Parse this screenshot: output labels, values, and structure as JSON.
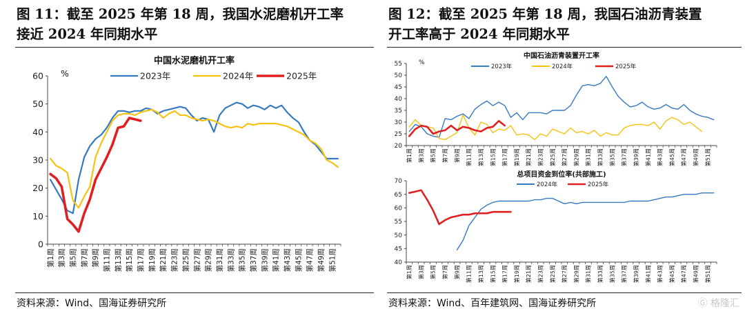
{
  "panels": {
    "left": {
      "title_line1": "图 11：截至 2025 年第 18 周，我国水泥磨机开工率",
      "title_line2": "接近 2024 年同期水平",
      "source": "资料来源：Wind、国海证券研究所"
    },
    "right": {
      "title_line1": "图 12：截至 2025 年第 18 周，我国石油沥青装置",
      "title_line2": "开工率高于 2024 年同期水平",
      "source": "资料来源：Wind、百年建筑网、国海证券研究所"
    }
  },
  "watermark": "格隆汇",
  "colors": {
    "y2023": "#3579c0",
    "y2024": "#f5c20f",
    "y2025": "#e02020"
  },
  "chart_data": [
    {
      "id": "cement",
      "type": "line",
      "title": "中国水泥磨机开工率",
      "unit_label": "%",
      "ylim": [
        0,
        60
      ],
      "yticks": [
        0,
        10,
        20,
        30,
        40,
        50,
        60
      ],
      "x_count": 52,
      "xtick_labels": [
        "第1周",
        "第3周",
        "第5周",
        "第7周",
        "第9周",
        "第11周",
        "第13周",
        "第15周",
        "第17周",
        "第19周",
        "第21周",
        "第23周",
        "第25周",
        "第27周",
        "第29周",
        "第31周",
        "第33周",
        "第35周",
        "第37周",
        "第39周",
        "第41周",
        "第43周",
        "第45周",
        "第47周",
        "第49周",
        "第51周"
      ],
      "series": [
        {
          "name": "2023年",
          "color_key": "y2023",
          "width": 2.2,
          "values": [
            23,
            19.5,
            16,
            12,
            11,
            23,
            31,
            35,
            37.5,
            39,
            41.5,
            45,
            47.5,
            47.5,
            47,
            47.5,
            47.5,
            48.5,
            48,
            46.5,
            47.5,
            48,
            48.5,
            49,
            48.5,
            46,
            44,
            45,
            44.5,
            40,
            46,
            48.5,
            49.5,
            50.5,
            50,
            48.5,
            49.5,
            49,
            48,
            49.5,
            48.5,
            49.5,
            47,
            45,
            43.5,
            40,
            37,
            35.5,
            33,
            30.5,
            30.5,
            30.5
          ]
        },
        {
          "name": "2024年",
          "color_key": "y2024",
          "width": 2.2,
          "values": [
            30.5,
            28,
            27,
            25.5,
            15.5,
            13,
            17,
            20.5,
            31,
            36,
            40,
            44,
            46,
            46.5,
            46.5,
            46,
            47,
            47.5,
            48,
            47,
            45,
            46.5,
            47.5,
            46,
            46,
            45,
            44.5,
            44,
            44.5,
            44,
            43,
            42,
            41.5,
            42,
            41.5,
            43,
            42.5,
            43,
            43,
            43,
            43,
            42.5,
            42,
            41,
            40,
            39,
            37,
            36,
            34,
            30,
            29,
            27.5
          ]
        },
        {
          "name": "2025年",
          "color_key": "y2025",
          "width": 3.6,
          "values": [
            25,
            23.5,
            20.5,
            9,
            7,
            4.5,
            11,
            16,
            23,
            27,
            31,
            35.5,
            41.5,
            42,
            45,
            44.5,
            44
          ]
        }
      ]
    },
    {
      "id": "asphalt",
      "type": "line",
      "title": "中国石油沥青装置开工率",
      "unit_label": "%",
      "ylim": [
        20,
        55
      ],
      "yticks": [
        20,
        25,
        30,
        35,
        40,
        45,
        50,
        55
      ],
      "x_count": 52,
      "xtick_labels": [
        "第1周",
        "第3周",
        "第5周",
        "第7周",
        "第9周",
        "第11周",
        "第13周",
        "第15周",
        "第17周",
        "第19周",
        "第21周",
        "第23周",
        "第25周",
        "第27周",
        "第29周",
        "第31周",
        "第33周",
        "第35周",
        "第37周",
        "第39周",
        "第41周",
        "第43周",
        "第45周",
        "第47周",
        "第49周",
        "第51周"
      ],
      "series": [
        {
          "name": "2023年",
          "color_key": "y2023",
          "width": 1.4,
          "values": [
            26,
            29,
            28,
            25,
            24,
            23.5,
            31.5,
            31,
            32.5,
            33.5,
            31.5,
            35.5,
            37.5,
            39,
            37,
            38.5,
            37,
            32,
            34,
            31,
            34,
            34,
            34,
            33.5,
            35,
            35,
            35,
            37,
            41.5,
            45.5,
            46,
            45.5,
            46.5,
            49.5,
            45,
            41,
            38.5,
            36.5,
            37,
            38.5,
            36.5,
            35.5,
            36,
            37.5,
            36,
            35.5,
            37.5,
            35,
            33.5,
            32.5,
            32,
            31
          ]
        },
        {
          "name": "2024年",
          "color_key": "y2024",
          "width": 1.4,
          "values": [
            28,
            31,
            28.5,
            28,
            27.5,
            23,
            22.5,
            24,
            25.5,
            33,
            27.5,
            24.5,
            30,
            29,
            25.5,
            27,
            26.5,
            28.5,
            24.5,
            25,
            24.5,
            22.5,
            25,
            24,
            27,
            26,
            25,
            27.5,
            25.5,
            26,
            25,
            26.5,
            24,
            25.5,
            24.5,
            24.5,
            27.5,
            28.5,
            29,
            29,
            28.5,
            30,
            27,
            30.5,
            32,
            31,
            29,
            30,
            28,
            26
          ]
        },
        {
          "name": "2025年",
          "color_key": "y2025",
          "width": 2.6,
          "values": [
            24,
            27,
            28.5,
            28,
            25,
            26,
            26.5,
            28.5,
            26.5,
            28,
            27.5,
            26.5,
            26,
            27.5,
            28,
            30.5,
            28.5
          ]
        }
      ]
    },
    {
      "id": "funds",
      "type": "line",
      "title": "总项目资金到位率(共部施工)",
      "ylim": [
        40,
        70
      ],
      "yticks": [
        40,
        45,
        50,
        55,
        60,
        65,
        70
      ],
      "x_count": 52,
      "xtick_labels": [
        "第1周",
        "第3周",
        "第5周",
        "第7周",
        "第9周",
        "第11周",
        "第13周",
        "第15周",
        "第17周",
        "第19周",
        "第21周",
        "第23周",
        "第25周",
        "第27周",
        "第29周",
        "第31周",
        "第33周",
        "第35周",
        "第37周",
        "第39周",
        "第41周",
        "第43周",
        "第45周",
        "第47周",
        "第49周",
        "第51周"
      ],
      "series": [
        {
          "name": "2024年",
          "color_key": "y2023",
          "width": 1.4,
          "start_index": 8,
          "values": [
            44.5,
            48,
            53.5,
            56.5,
            59.5,
            61,
            62,
            62.5,
            62.5,
            62.5,
            62.5,
            62.5,
            62.5,
            63,
            63,
            63.5,
            63.5,
            62.5,
            61.5,
            62,
            61.5,
            62,
            62,
            62,
            62,
            62,
            62,
            62,
            62,
            62.5,
            62.5,
            62.5,
            62.5,
            63,
            63.5,
            64,
            64,
            64.5,
            65,
            65,
            65,
            65.5,
            65.5,
            65.5
          ]
        },
        {
          "name": "2025年",
          "color_key": "y2025",
          "width": 2.6,
          "start_index": 0,
          "values": [
            65.5,
            66,
            66.5,
            63,
            59,
            54,
            55.5,
            56.5,
            57,
            57.5,
            57.5,
            58,
            58,
            58,
            58.5,
            58.5,
            58.5,
            58.5
          ]
        }
      ]
    }
  ]
}
